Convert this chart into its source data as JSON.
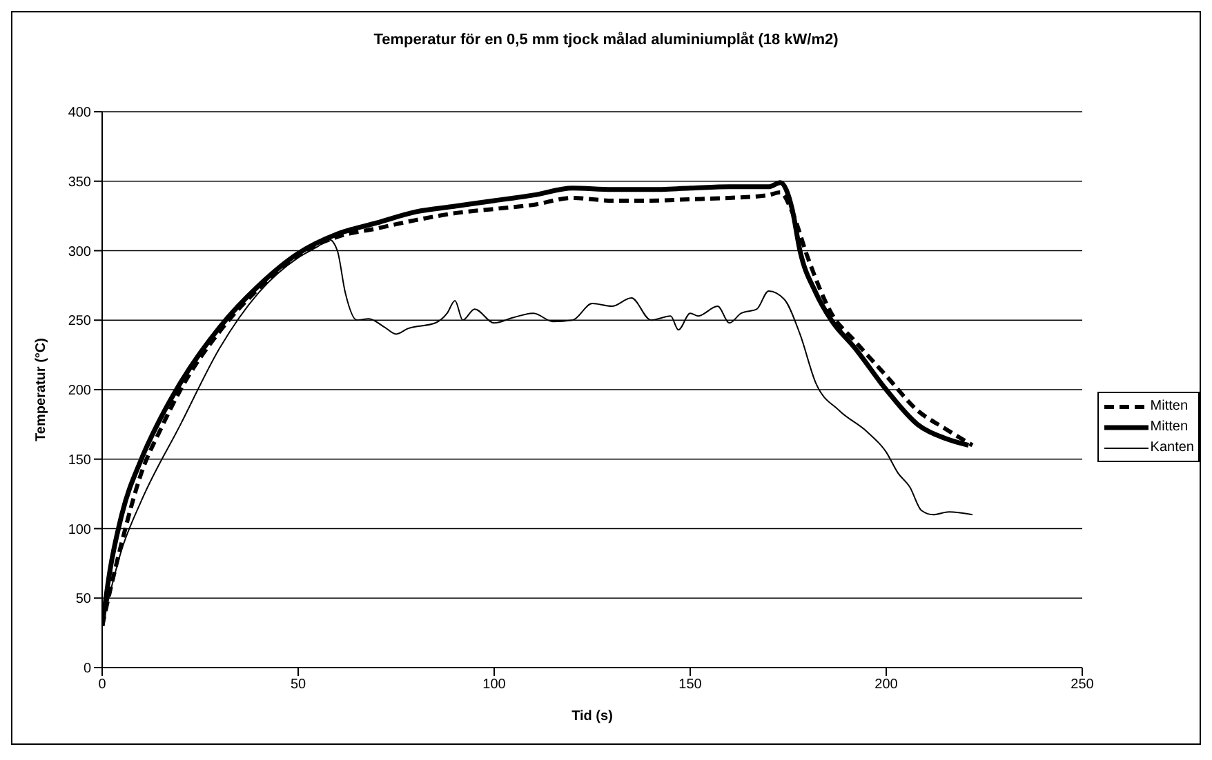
{
  "chart_data": {
    "type": "line",
    "title": "Temperatur för en 0,5 mm tjock målad aluminiumplåt (18 kW/m2)",
    "xlabel": "Tid (s)",
    "ylabel": "Temperatur (°C)",
    "xlim": [
      0,
      250
    ],
    "xticks": [
      0,
      50,
      100,
      150,
      200,
      250
    ],
    "ylim": [
      0,
      400
    ],
    "yticks": [
      0,
      50,
      100,
      150,
      200,
      250,
      300,
      350,
      400
    ],
    "grid": "y",
    "legend": "right",
    "marker": "none",
    "series": [
      {
        "name": "Mitten",
        "color": "#000000",
        "line_style": "dashed",
        "x": [
          0,
          2,
          5,
          10,
          15,
          20,
          30,
          40,
          50,
          60,
          70,
          80,
          90,
          100,
          110,
          120,
          125,
          130,
          140,
          150,
          160,
          170,
          173,
          176,
          180,
          186,
          192,
          200,
          208,
          215,
          222
        ],
        "values": [
          30,
          55,
          90,
          140,
          172,
          200,
          242,
          273,
          297,
          310,
          316,
          322,
          327,
          330,
          333,
          338,
          337,
          336,
          336,
          337,
          338,
          340,
          342,
          328,
          295,
          255,
          235,
          210,
          185,
          172,
          160
        ]
      },
      {
        "name": "Mitten",
        "color": "#000000",
        "line_style": "solid",
        "x": [
          0,
          2,
          5,
          10,
          15,
          20,
          30,
          40,
          50,
          60,
          70,
          80,
          90,
          100,
          110,
          120,
          130,
          140,
          150,
          160,
          170,
          173,
          176,
          178,
          182,
          186,
          192,
          200,
          208,
          215,
          221
        ],
        "values": [
          30,
          70,
          110,
          150,
          180,
          205,
          245,
          275,
          298,
          312,
          320,
          328,
          332,
          336,
          340,
          345,
          344,
          344,
          345,
          346,
          346,
          349,
          330,
          300,
          270,
          250,
          230,
          200,
          175,
          165,
          160
        ]
      },
      {
        "name": "Kanten",
        "color": "#000000",
        "line_style": "solid",
        "x": [
          0,
          5,
          10,
          20,
          30,
          40,
          50,
          55,
          58,
          60,
          62,
          65,
          68,
          72,
          75,
          78,
          85,
          88,
          90,
          92,
          95,
          100,
          105,
          110,
          115,
          120,
          125,
          130,
          135,
          140,
          145,
          147,
          150,
          152,
          157,
          160,
          163,
          167,
          170,
          174,
          178,
          182,
          188,
          195,
          200,
          203,
          206,
          209,
          212,
          216,
          222
        ],
        "values": [
          30,
          85,
          120,
          175,
          230,
          270,
          295,
          303,
          308,
          300,
          270,
          250,
          251,
          245,
          240,
          244,
          248,
          255,
          264,
          250,
          258,
          248,
          252,
          255,
          249,
          250,
          262,
          260,
          266,
          250,
          253,
          243,
          255,
          253,
          260,
          248,
          255,
          258,
          271,
          265,
          240,
          205,
          185,
          170,
          155,
          140,
          130,
          113,
          110,
          112,
          110
        ]
      }
    ]
  }
}
